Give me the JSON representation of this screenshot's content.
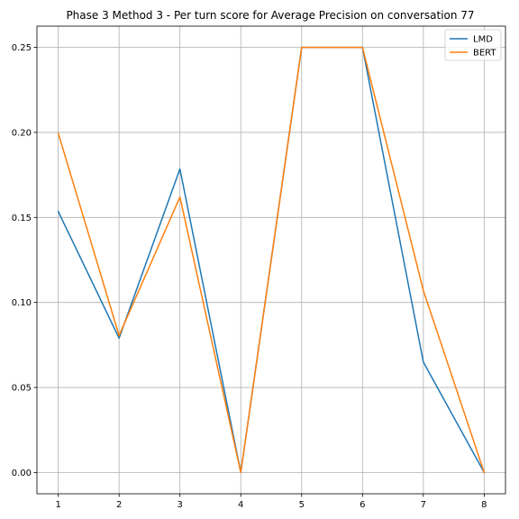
{
  "chart_data": {
    "type": "line",
    "title": "Phase 3 Method 3 - Per turn score for Average Precision on conversation 77",
    "xlabel": "",
    "ylabel": "",
    "x": [
      1,
      2,
      3,
      4,
      5,
      6,
      7,
      8
    ],
    "xticks": [
      "1",
      "2",
      "3",
      "4",
      "5",
      "6",
      "7",
      "8"
    ],
    "yticks": [
      "0.00",
      "0.05",
      "0.10",
      "0.15",
      "0.20",
      "0.25"
    ],
    "xlim": [
      0.65,
      8.35
    ],
    "ylim": [
      -0.0125,
      0.2625
    ],
    "grid": true,
    "legend_position": "top-right",
    "series": [
      {
        "name": "LMD",
        "color": "#1f77b4",
        "values": [
          0.1535,
          0.079,
          0.1785,
          0.0,
          0.25,
          0.25,
          0.065,
          0.0
        ]
      },
      {
        "name": "BERT",
        "color": "#ff7f0e",
        "values": [
          0.1995,
          0.0805,
          0.162,
          0.0,
          0.25,
          0.25,
          0.107,
          0.0
        ]
      }
    ]
  }
}
